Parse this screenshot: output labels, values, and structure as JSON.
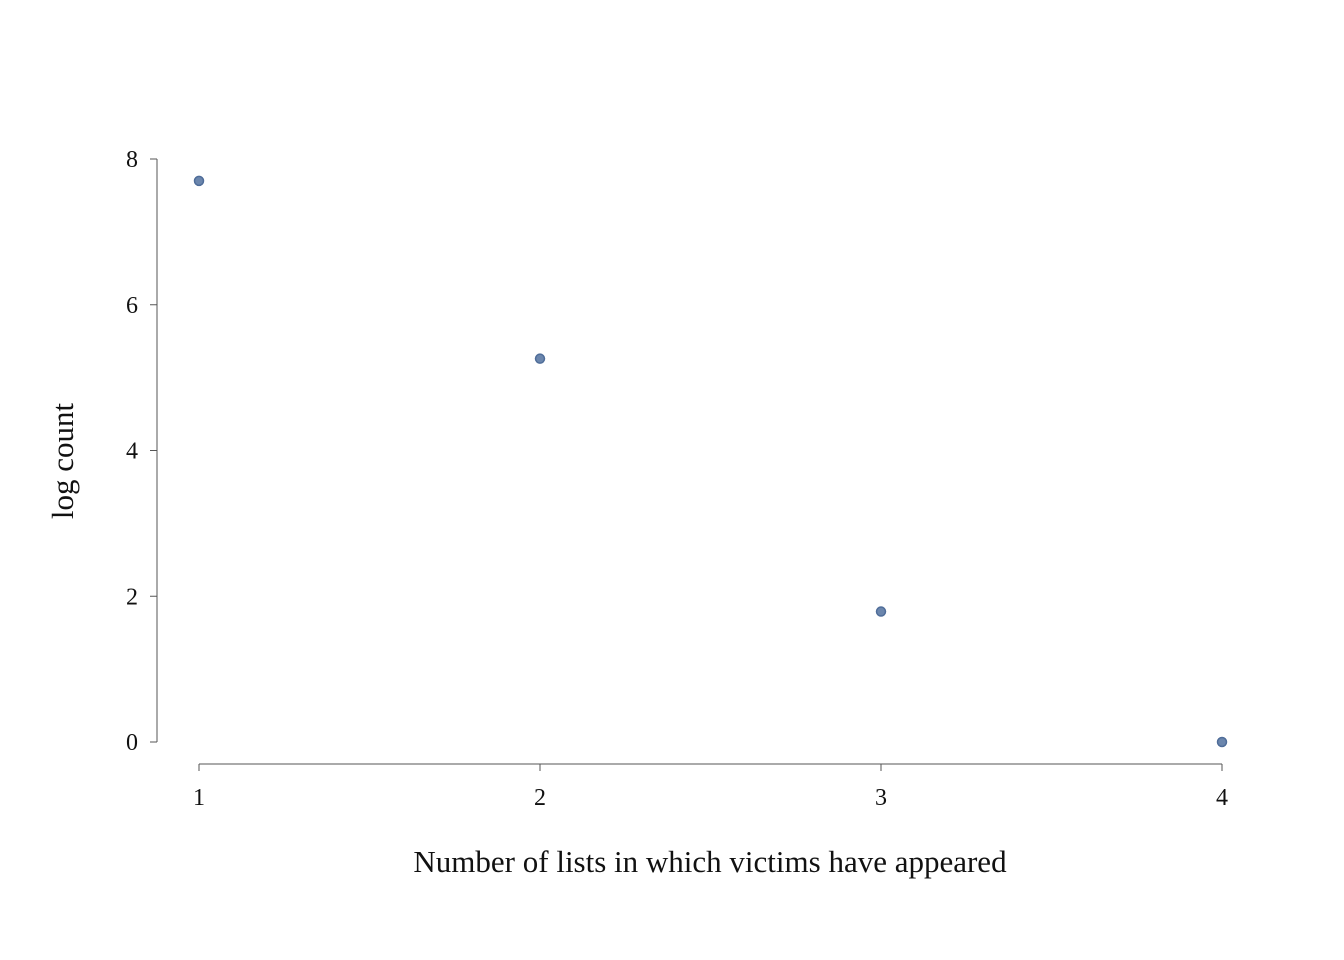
{
  "chart_data": {
    "type": "scatter",
    "title": "",
    "xlabel": "Number of lists in which victims have appeared",
    "ylabel": "log count",
    "x_ticks": [
      "1",
      "2",
      "3",
      "4"
    ],
    "y_ticks": [
      "0",
      "2",
      "4",
      "6",
      "8"
    ],
    "xlim": [
      1,
      4
    ],
    "ylim": [
      0,
      8
    ],
    "grid": false,
    "series": [
      {
        "x": [
          1,
          2,
          3,
          4
        ],
        "y": [
          7.7,
          5.26,
          1.79,
          0
        ]
      }
    ]
  },
  "colors": {
    "point_fill": "#6b86ad",
    "point_stroke": "#4f6d99"
  }
}
